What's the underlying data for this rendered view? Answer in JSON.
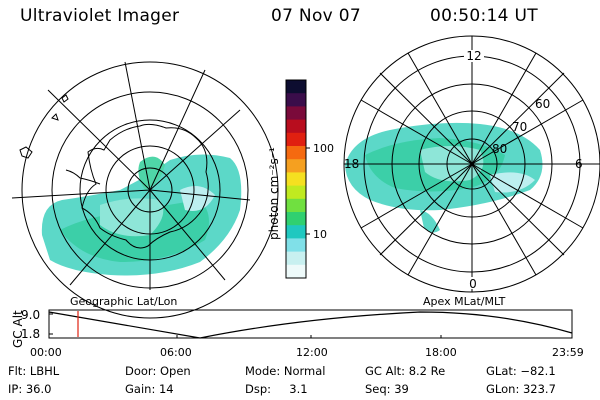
{
  "header": {
    "instrument": "Ultraviolet Imager",
    "date": "07 Nov 07",
    "time": "00:50:14 UT"
  },
  "colorbar": {
    "label": "photon cm⁻²s⁻¹",
    "ticks": [
      "100",
      "10"
    ],
    "colors": [
      "#0d0d30",
      "#3a0d4a",
      "#7a0a3a",
      "#b80d1e",
      "#e02010",
      "#f56a10",
      "#f5a020",
      "#f5e020",
      "#c0ea20",
      "#70e040",
      "#30d070",
      "#20c8c0",
      "#80e0e8",
      "#c8f0f0",
      "#eefafa"
    ]
  },
  "left_map": {
    "label": "Geographic Lat/Lon"
  },
  "right_map": {
    "label": "Apex MLat/MLT",
    "hour_labels": {
      "top": "12",
      "left": "18",
      "right": "6",
      "bottom": "0"
    },
    "lat_labels": [
      "60",
      "70",
      "80"
    ]
  },
  "altitude_plot": {
    "ylabel": "GC Alt",
    "yticks": [
      "9.0",
      "1.8"
    ],
    "xticks": [
      "00:00",
      "06:00",
      "12:00",
      "18:00",
      "23:59"
    ],
    "cursor_color": "#e02010"
  },
  "status": {
    "filter": "Flt: LBHL",
    "ip": "IP: 36.0",
    "door": "Door: Open",
    "gain": "Gain: 14",
    "mode": "Mode: Normal",
    "dsp": "Dsp:     3.1",
    "gc_alt": "GC Alt: 8.2 Re",
    "seq": "Seq: 39",
    "glat": "GLat: −82.1",
    "glon": "GLon: 323.7"
  }
}
